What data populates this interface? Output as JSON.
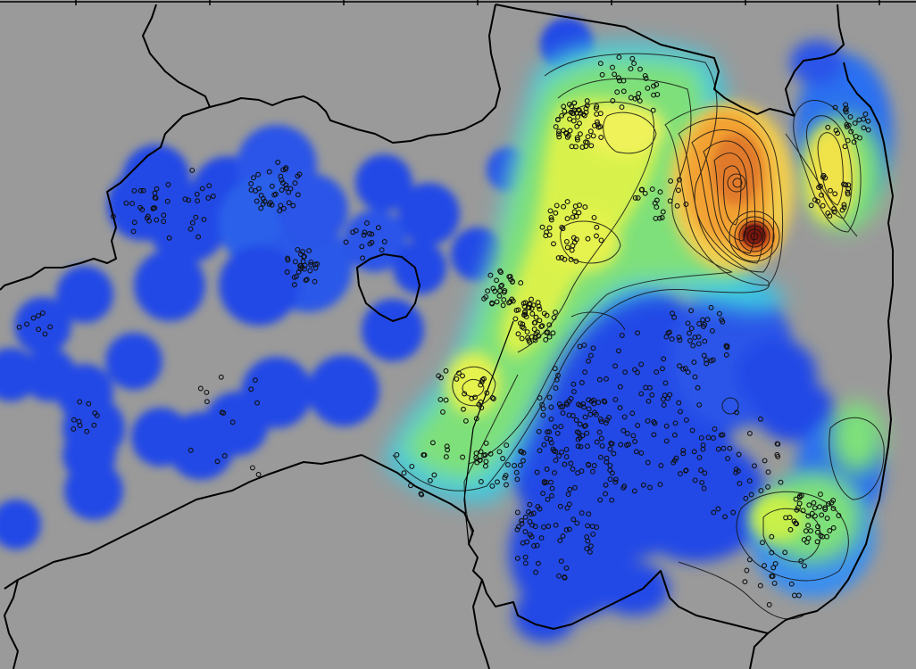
{
  "map": {
    "background_color": "#9a9a9a",
    "border_color": "#000000",
    "contour_color": "#111111",
    "station_marker_color": "#111111",
    "colormap": [
      "#1a3ef0",
      "#2e6ff2",
      "#3fb8e8",
      "#74e07a",
      "#c8f04a",
      "#f2f25a",
      "#f2a030",
      "#d04a1a",
      "#8a1a10"
    ],
    "contours": true,
    "frame_ticks": true
  }
}
